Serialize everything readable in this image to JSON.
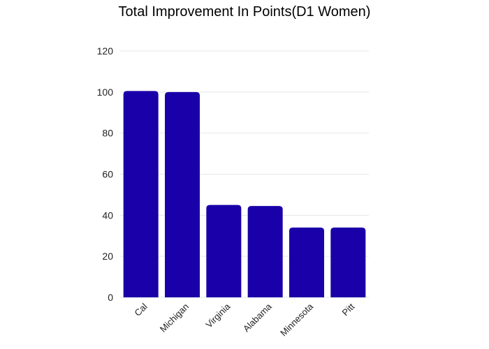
{
  "chart_data": {
    "type": "bar",
    "title": "Total Improvement In Points(D1 Women)",
    "xlabel": "",
    "ylabel": "",
    "categories": [
      "Cal",
      "Michigan",
      "Virginia",
      "Alabama",
      "Minnesota",
      "Pitt"
    ],
    "values": [
      100.5,
      100,
      45,
      44.5,
      34,
      34
    ],
    "ylim": [
      0,
      120
    ],
    "yticks": [
      0,
      20,
      40,
      60,
      80,
      100,
      120
    ],
    "grid": true,
    "legend": "none",
    "bar_color": "#1a00a8",
    "grid_color": "#e6e6e6"
  }
}
